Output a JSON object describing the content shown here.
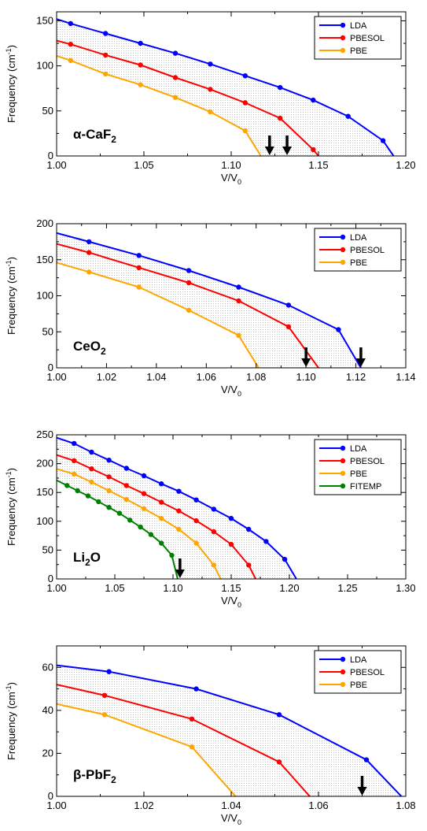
{
  "chart_data": [
    {
      "type": "line",
      "title": "",
      "material_label": "α-CaF",
      "material_subscript": "2",
      "xlabel": "V/V",
      "xlabel_sub": "0",
      "ylabel": "Frequency (cm",
      "ylabel_sup": "-1",
      "ylabel_close": ")",
      "xlim": [
        1.0,
        1.2
      ],
      "ylim": [
        0,
        160
      ],
      "xticks": [
        1.0,
        1.05,
        1.1,
        1.15,
        1.2
      ],
      "xtick_labels": [
        "1.00",
        "1.05",
        "1.10",
        "1.15",
        "1.20"
      ],
      "yticks": [
        0,
        50,
        100,
        150
      ],
      "ytick_labels": [
        "0",
        "50",
        "100",
        "150"
      ],
      "legend_position": "top-right",
      "shaded_between": [
        "LDA",
        "PBE"
      ],
      "series": [
        {
          "name": "LDA",
          "color": "#0000ff",
          "points": [
            [
              1.0,
              152
            ],
            [
              1.008,
              147
            ],
            [
              1.028,
              136
            ],
            [
              1.048,
              125
            ],
            [
              1.068,
              114
            ],
            [
              1.088,
              102
            ],
            [
              1.108,
              89
            ],
            [
              1.128,
              76
            ],
            [
              1.147,
              62
            ],
            [
              1.167,
              44
            ],
            [
              1.187,
              17
            ],
            [
              1.193,
              0
            ]
          ]
        },
        {
          "name": "PBESOL",
          "color": "#ff0000",
          "points": [
            [
              1.0,
              128
            ],
            [
              1.008,
              124
            ],
            [
              1.028,
              112
            ],
            [
              1.048,
              101
            ],
            [
              1.068,
              87
            ],
            [
              1.088,
              74
            ],
            [
              1.108,
              59
            ],
            [
              1.128,
              42
            ],
            [
              1.147,
              7
            ],
            [
              1.15,
              0
            ]
          ]
        },
        {
          "name": "PBE",
          "color": "#ffa500",
          "points": [
            [
              1.0,
              111
            ],
            [
              1.008,
              106
            ],
            [
              1.028,
              91
            ],
            [
              1.048,
              79
            ],
            [
              1.068,
              65
            ],
            [
              1.088,
              49
            ],
            [
              1.108,
              28
            ],
            [
              1.117,
              0
            ]
          ]
        }
      ],
      "arrows_x": [
        1.122,
        1.132
      ],
      "arrow_color": "#000000"
    },
    {
      "type": "line",
      "title": "",
      "material_label": "CeO",
      "material_subscript": "2",
      "xlabel": "V/V",
      "xlabel_sub": "0",
      "ylabel": "Frequency (cm",
      "ylabel_sup": "-1",
      "ylabel_close": ")",
      "xlim": [
        1.0,
        1.14
      ],
      "ylim": [
        0,
        200
      ],
      "xticks": [
        1.0,
        1.02,
        1.04,
        1.06,
        1.08,
        1.1,
        1.12,
        1.14
      ],
      "xtick_labels": [
        "1.00",
        "1.02",
        "1.04",
        "1.06",
        "1.08",
        "1.10",
        "1.12",
        "1.14"
      ],
      "yticks": [
        0,
        50,
        100,
        150,
        200
      ],
      "ytick_labels": [
        "0",
        "50",
        "100",
        "150",
        "200"
      ],
      "legend_position": "top-right",
      "shaded_between": [
        "LDA",
        "PBE"
      ],
      "series": [
        {
          "name": "LDA",
          "color": "#0000ff",
          "points": [
            [
              1.0,
              187
            ],
            [
              1.013,
              175
            ],
            [
              1.033,
              156
            ],
            [
              1.053,
              135
            ],
            [
              1.073,
              112
            ],
            [
              1.093,
              87
            ],
            [
              1.113,
              53
            ],
            [
              1.122,
              0
            ]
          ]
        },
        {
          "name": "PBESOL",
          "color": "#ff0000",
          "points": [
            [
              1.0,
              172
            ],
            [
              1.013,
              160
            ],
            [
              1.033,
              139
            ],
            [
              1.053,
              118
            ],
            [
              1.073,
              93
            ],
            [
              1.093,
              57
            ],
            [
              1.105,
              0
            ]
          ]
        },
        {
          "name": "PBE",
          "color": "#ffa500",
          "points": [
            [
              1.0,
              146
            ],
            [
              1.013,
              133
            ],
            [
              1.033,
              112
            ],
            [
              1.053,
              80
            ],
            [
              1.073,
              45
            ],
            [
              1.081,
              0
            ]
          ]
        }
      ],
      "arrows_x": [
        1.1,
        1.122
      ],
      "arrow_color": "#000000"
    },
    {
      "type": "line",
      "title": "",
      "material_label": "Li",
      "material_subscript": "2",
      "material_suffix": "O",
      "xlabel": "V/V",
      "xlabel_sub": "0",
      "ylabel": "Frequency (cm",
      "ylabel_sup": "-1",
      "ylabel_close": ")",
      "xlim": [
        1.0,
        1.3
      ],
      "ylim": [
        0,
        250
      ],
      "xticks": [
        1.0,
        1.05,
        1.1,
        1.15,
        1.2,
        1.25,
        1.3
      ],
      "xtick_labels": [
        "1.00",
        "1.05",
        "1.10",
        "1.15",
        "1.20",
        "1.25",
        "1.30"
      ],
      "yticks": [
        0,
        50,
        100,
        150,
        200,
        250
      ],
      "ytick_labels": [
        "0",
        "50",
        "100",
        "150",
        "200",
        "250"
      ],
      "legend_position": "top-right",
      "shaded_between": [
        "LDA",
        "FITEMP"
      ],
      "series": [
        {
          "name": "LDA",
          "color": "#0000ff",
          "points": [
            [
              1.0,
              245
            ],
            [
              1.015,
              235
            ],
            [
              1.03,
              220
            ],
            [
              1.045,
              206
            ],
            [
              1.06,
              192
            ],
            [
              1.075,
              179
            ],
            [
              1.09,
              165
            ],
            [
              1.105,
              152
            ],
            [
              1.12,
              137
            ],
            [
              1.135,
              121
            ],
            [
              1.15,
              105
            ],
            [
              1.165,
              86
            ],
            [
              1.18,
              65
            ],
            [
              1.196,
              34
            ],
            [
              1.206,
              0
            ]
          ]
        },
        {
          "name": "PBESOL",
          "color": "#ff0000",
          "points": [
            [
              1.0,
              215
            ],
            [
              1.015,
              205
            ],
            [
              1.03,
              191
            ],
            [
              1.045,
              177
            ],
            [
              1.06,
              162
            ],
            [
              1.075,
              148
            ],
            [
              1.09,
              133
            ],
            [
              1.105,
              118
            ],
            [
              1.12,
              101
            ],
            [
              1.135,
              82
            ],
            [
              1.15,
              60
            ],
            [
              1.165,
              24
            ],
            [
              1.171,
              0
            ]
          ]
        },
        {
          "name": "PBE",
          "color": "#ffa500",
          "points": [
            [
              1.0,
              191
            ],
            [
              1.015,
              182
            ],
            [
              1.03,
              168
            ],
            [
              1.045,
              153
            ],
            [
              1.06,
              138
            ],
            [
              1.075,
              122
            ],
            [
              1.09,
              105
            ],
            [
              1.105,
              86
            ],
            [
              1.12,
              62
            ],
            [
              1.135,
              24
            ],
            [
              1.141,
              0
            ]
          ]
        },
        {
          "name": "FITEMP",
          "color": "#008000",
          "points": [
            [
              1.0,
              171
            ],
            [
              1.009,
              162
            ],
            [
              1.018,
              153
            ],
            [
              1.027,
              144
            ],
            [
              1.036,
              134
            ],
            [
              1.045,
              124
            ],
            [
              1.054,
              114
            ],
            [
              1.063,
              102
            ],
            [
              1.072,
              90
            ],
            [
              1.081,
              77
            ],
            [
              1.09,
              62
            ],
            [
              1.099,
              41
            ],
            [
              1.104,
              0
            ]
          ]
        }
      ],
      "arrows_x": [
        1.106
      ],
      "arrow_color": "#000000"
    },
    {
      "type": "line",
      "title": "",
      "material_label": "β-PbF",
      "material_subscript": "2",
      "xlabel": "V/V",
      "xlabel_sub": "0",
      "ylabel": "Frequency (cm",
      "ylabel_sup": "-1",
      "ylabel_close": ")",
      "xlim": [
        1.0,
        1.08
      ],
      "ylim": [
        0,
        70
      ],
      "xticks": [
        1.0,
        1.02,
        1.04,
        1.06,
        1.08
      ],
      "xtick_labels": [
        "1.00",
        "1.02",
        "1.04",
        "1.06",
        "1.08"
      ],
      "yticks": [
        0,
        20,
        40,
        60
      ],
      "ytick_labels": [
        "0",
        "20",
        "40",
        "60"
      ],
      "legend_position": "top-right",
      "shaded_between": [
        "LDA",
        "PBE"
      ],
      "series": [
        {
          "name": "LDA",
          "color": "#0000ff",
          "points": [
            [
              1.0,
              61
            ],
            [
              1.012,
              58
            ],
            [
              1.032,
              50
            ],
            [
              1.051,
              38
            ],
            [
              1.071,
              17
            ],
            [
              1.079,
              0
            ]
          ]
        },
        {
          "name": "PBESOL",
          "color": "#ff0000",
          "points": [
            [
              1.0,
              52
            ],
            [
              1.011,
              47
            ],
            [
              1.031,
              36
            ],
            [
              1.051,
              16
            ],
            [
              1.058,
              0
            ]
          ]
        },
        {
          "name": "PBE",
          "color": "#ffa500",
          "points": [
            [
              1.0,
              43
            ],
            [
              1.011,
              38
            ],
            [
              1.031,
              23
            ],
            [
              1.041,
              0
            ]
          ]
        }
      ],
      "arrows_x": [
        1.07
      ],
      "arrow_color": "#000000"
    }
  ]
}
